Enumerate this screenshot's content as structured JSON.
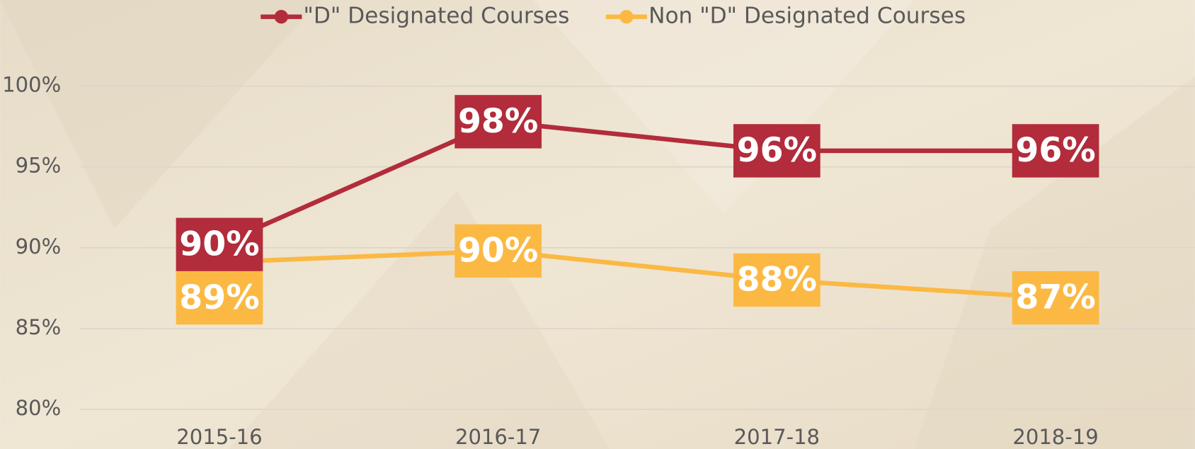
{
  "chart_data": {
    "type": "line",
    "categories": [
      "2015-16",
      "2016-17",
      "2017-18",
      "2018-19"
    ],
    "series": [
      {
        "name": "\"D\" Designated Courses",
        "color": "#b22c3b",
        "values": [
          90.2,
          97.8,
          96,
          96
        ],
        "value_labels": [
          "90%",
          "98%",
          "96%",
          "96%"
        ]
      },
      {
        "name": "Non \"D\" Designated Courses",
        "color": "#fbb944",
        "values": [
          89.1,
          89.8,
          88,
          86.9
        ],
        "value_labels": [
          "89%",
          "90%",
          "88%",
          "87%"
        ]
      }
    ],
    "ylim": [
      80,
      100
    ],
    "yticks": [
      {
        "value": 80,
        "label": "80%"
      },
      {
        "value": 85,
        "label": "85%"
      },
      {
        "value": 90,
        "label": "90%"
      },
      {
        "value": 95,
        "label": "95%"
      },
      {
        "value": 100,
        "label": "100%"
      }
    ],
    "grid": true,
    "legend": "top"
  }
}
